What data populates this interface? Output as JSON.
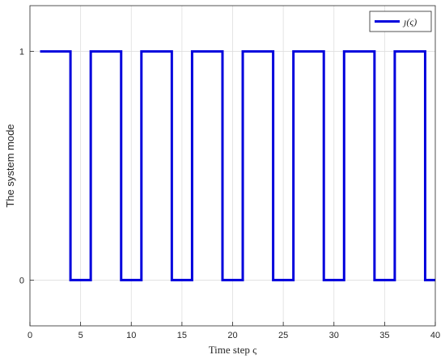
{
  "chart_data": {
    "type": "line",
    "step": true,
    "title": "",
    "xlabel": "Time step ς",
    "ylabel": "The system mode",
    "xlim": [
      0,
      40
    ],
    "ylim": [
      -0.2,
      1.2
    ],
    "xticks": [
      0,
      5,
      10,
      15,
      20,
      25,
      30,
      35,
      40
    ],
    "yticks": [
      0,
      1
    ],
    "grid": true,
    "legend": "top-right",
    "series": [
      {
        "name": "ȷ(ς)",
        "color": "#0000dd",
        "x": [
          1,
          4,
          4,
          6,
          6,
          9,
          9,
          11,
          11,
          14,
          14,
          16,
          16,
          19,
          19,
          21,
          21,
          24,
          24,
          26,
          26,
          29,
          29,
          31,
          31,
          34,
          34,
          36,
          36,
          39,
          39,
          40
        ],
        "y": [
          1,
          1,
          0,
          0,
          1,
          1,
          0,
          0,
          1,
          1,
          0,
          0,
          1,
          1,
          0,
          0,
          1,
          1,
          0,
          0,
          1,
          1,
          0,
          0,
          1,
          1,
          0,
          0,
          1,
          1,
          0,
          0
        ]
      }
    ]
  }
}
